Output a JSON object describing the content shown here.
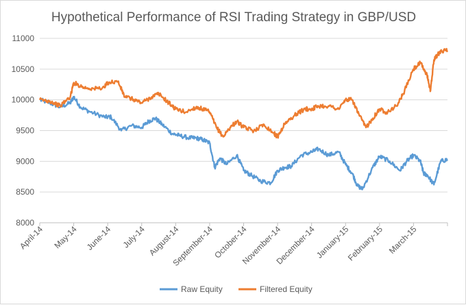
{
  "chart_data": {
    "type": "line",
    "title": "Hypothetical Performance of RSI Trading Strategy in GBP/USD",
    "xlabel": "",
    "ylabel": "",
    "ylim": [
      8000,
      11000
    ],
    "yticks": [
      "8000",
      "8500",
      "9000",
      "9500",
      "10000",
      "10500",
      "11000"
    ],
    "categories": [
      "April-14",
      "May-14",
      "June-14",
      "July-14",
      "August-14",
      "September-14",
      "October-14",
      "November-14",
      "December-14",
      "January-15",
      "February-15",
      "March-15"
    ],
    "legend_position": "bottom",
    "grid": "horizontal",
    "series": [
      {
        "name": "Raw Equity",
        "color": "#5b9bd5",
        "x": [
          0,
          0.3,
          0.6,
          0.9,
          1.0,
          1.2,
          1.5,
          1.9,
          2.1,
          2.4,
          2.7,
          3.0,
          3.2,
          3.4,
          3.6,
          3.9,
          4.1,
          4.4,
          4.6,
          4.8,
          5.0,
          5.15,
          5.3,
          5.5,
          5.8,
          6.0,
          6.2,
          6.5,
          6.8,
          7.0,
          7.2,
          7.4,
          7.7,
          8.0,
          8.2,
          8.5,
          8.8,
          9.0,
          9.2,
          9.35,
          9.5,
          9.8,
          10.0,
          10.3,
          10.6,
          10.8,
          11.0,
          11.2,
          11.3,
          11.4,
          11.6,
          11.8,
          12.0
        ],
        "values": [
          10000,
          9950,
          9880,
          9950,
          10050,
          9880,
          9800,
          9720,
          9720,
          9500,
          9580,
          9550,
          9650,
          9700,
          9600,
          9450,
          9420,
          9380,
          9380,
          9350,
          9300,
          8900,
          9050,
          8950,
          9100,
          8850,
          8780,
          8680,
          8650,
          8850,
          8900,
          8920,
          9100,
          9150,
          9200,
          9100,
          9150,
          8950,
          8800,
          8600,
          8550,
          8900,
          9080,
          9000,
          8850,
          9000,
          9100,
          9000,
          8800,
          8780,
          8620,
          9000,
          9030
        ]
      },
      {
        "name": "Filtered Equity",
        "color": "#ed7d31",
        "x": [
          0,
          0.3,
          0.6,
          0.9,
          1.0,
          1.3,
          1.6,
          1.9,
          2.0,
          2.3,
          2.5,
          2.8,
          3.0,
          3.3,
          3.5,
          3.8,
          4.0,
          4.3,
          4.6,
          4.8,
          5.0,
          5.2,
          5.4,
          5.6,
          5.8,
          6.0,
          6.3,
          6.6,
          6.9,
          7.0,
          7.2,
          7.5,
          7.8,
          8.0,
          8.2,
          8.5,
          8.8,
          9.0,
          9.2,
          9.4,
          9.6,
          9.8,
          10.0,
          10.2,
          10.5,
          10.7,
          11.0,
          11.2,
          11.4,
          11.5,
          11.6,
          11.8,
          12.0
        ],
        "values": [
          10000,
          9980,
          9900,
          10050,
          10280,
          10200,
          10180,
          10200,
          10280,
          10300,
          10050,
          10000,
          9950,
          10050,
          10100,
          9950,
          9850,
          9800,
          9880,
          9850,
          9800,
          9550,
          9400,
          9550,
          9650,
          9550,
          9500,
          9600,
          9450,
          9400,
          9600,
          9750,
          9850,
          9850,
          9900,
          9900,
          9850,
          10000,
          10000,
          9750,
          9550,
          9700,
          9850,
          9800,
          9900,
          10100,
          10500,
          10600,
          10400,
          10150,
          10650,
          10800,
          10800
        ]
      }
    ]
  }
}
